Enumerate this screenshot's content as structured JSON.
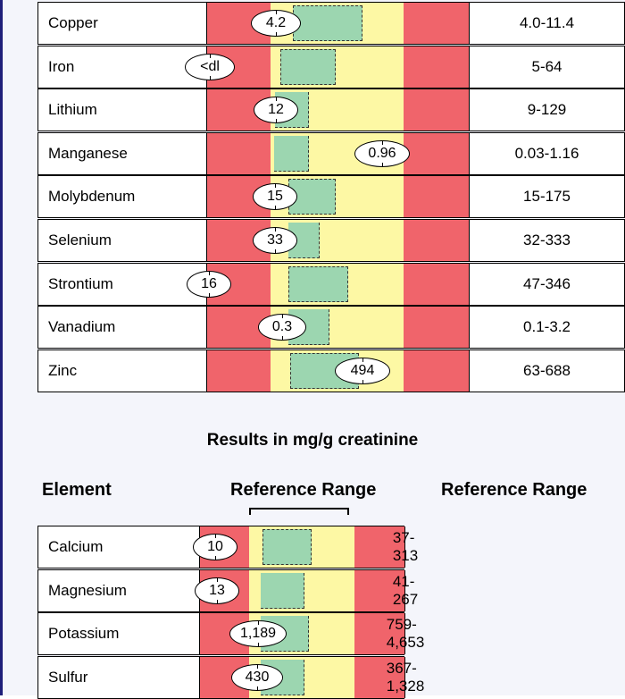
{
  "upper_rows": [
    {
      "element": "Copper",
      "result": "4.2",
      "ref": "4.0-11.4"
    },
    {
      "element": "Iron",
      "result": "<dl",
      "ref": "5-64"
    },
    {
      "element": "Lithium",
      "result": "12",
      "ref": "9-129"
    },
    {
      "element": "Manganese",
      "result": "0.96",
      "ref": "0.03-1.16"
    },
    {
      "element": "Molybdenum",
      "result": "15",
      "ref": "15-175"
    },
    {
      "element": "Selenium",
      "result": "33",
      "ref": "32-333"
    },
    {
      "element": "Strontium",
      "result": "16",
      "ref": "47-346"
    },
    {
      "element": "Vanadium",
      "result": "0.3",
      "ref": "0.1-3.2"
    },
    {
      "element": "Zinc",
      "result": "494",
      "ref": "63-688"
    }
  ],
  "section_title": "Results in mg/g creatinine",
  "headers": {
    "element": "Element",
    "range_graph": "Reference Range",
    "range_text": "Reference Range"
  },
  "lower_rows": [
    {
      "element": "Calcium",
      "result": "10",
      "ref": "37-313"
    },
    {
      "element": "Magnesium",
      "result": "13",
      "ref": "41-267"
    },
    {
      "element": "Potassium",
      "result": "1,189",
      "ref": "759-4,653"
    },
    {
      "element": "Sulfur",
      "result": "430",
      "ref": "367-1,328"
    }
  ],
  "colors": {
    "out_of_range": "#f0646b",
    "borderline": "#fdf8a4",
    "in_range": "#9cd6b0",
    "frame": "#1f1f7a"
  }
}
